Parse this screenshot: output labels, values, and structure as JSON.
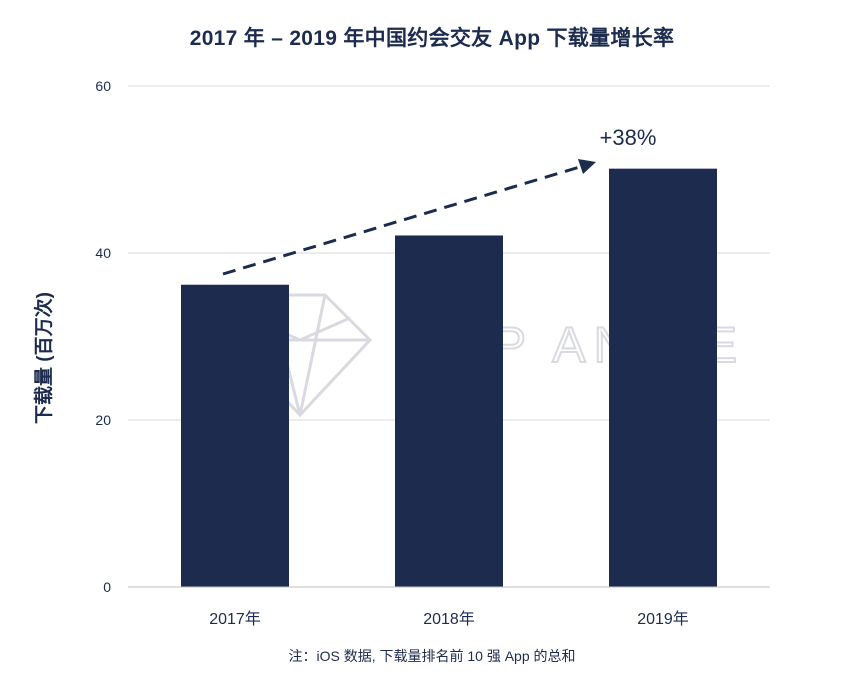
{
  "chart_data": {
    "type": "bar",
    "title": "2017 年 – 2019 年中国约会交友 App 下载量增长率",
    "ylabel": "下载量 (百万次)",
    "xlabel": "",
    "categories": [
      "2017年",
      "2018年",
      "2019年"
    ],
    "series": [
      {
        "values": [
          36.2,
          42.1,
          50.1
        ]
      }
    ],
    "ylim": [
      0,
      60
    ],
    "yticks": [
      0,
      20,
      40,
      60
    ],
    "grid": true,
    "annotation": "+38%",
    "note": "注：iOS 数据, 下载量排名前 10 强 App 的总和",
    "watermark": "APP ANNIE",
    "colors": {
      "bar": "#1c2b4e",
      "text": "#1c2b4e",
      "grid": "#d9d9d9",
      "watermark": "#d5d7dd"
    }
  }
}
